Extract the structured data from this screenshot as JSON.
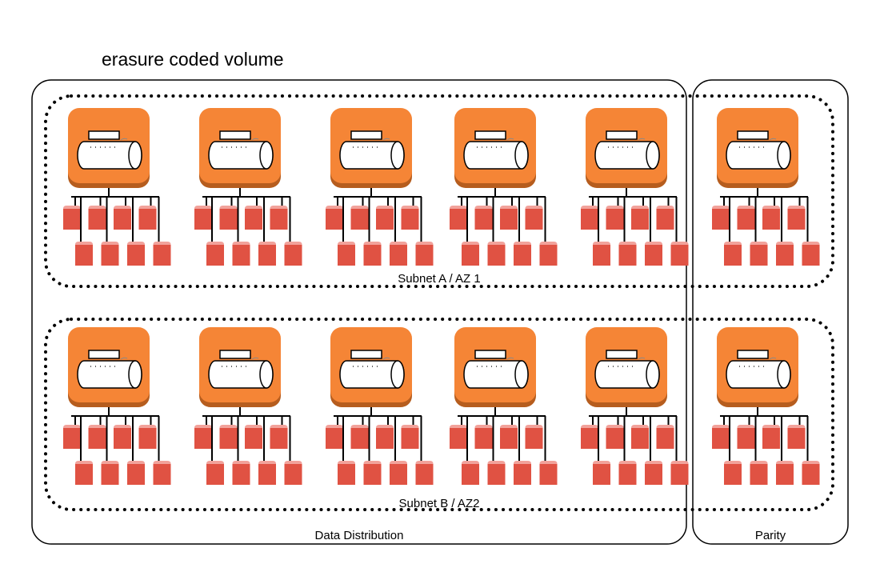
{
  "title": "erasure coded volume",
  "groups": {
    "data": {
      "label": "Data Distribution"
    },
    "parity": {
      "label": "Parity"
    }
  },
  "subnets": [
    {
      "label": "Subnet A / AZ 1"
    },
    {
      "label": "Subnet B / AZ2"
    }
  ],
  "layout_counts": {
    "nodes_per_subnet_data": 5,
    "nodes_per_subnet_parity": 1,
    "disks_per_node": 8
  },
  "icons": {
    "node": "ebs-volume-icon",
    "disk": "disk-icon"
  },
  "colors": {
    "node_fill": "#F58536",
    "node_shadow": "#B65D1E",
    "disk_fill": "#E05243",
    "disk_top": "#F2A29B",
    "line": "#000000"
  }
}
